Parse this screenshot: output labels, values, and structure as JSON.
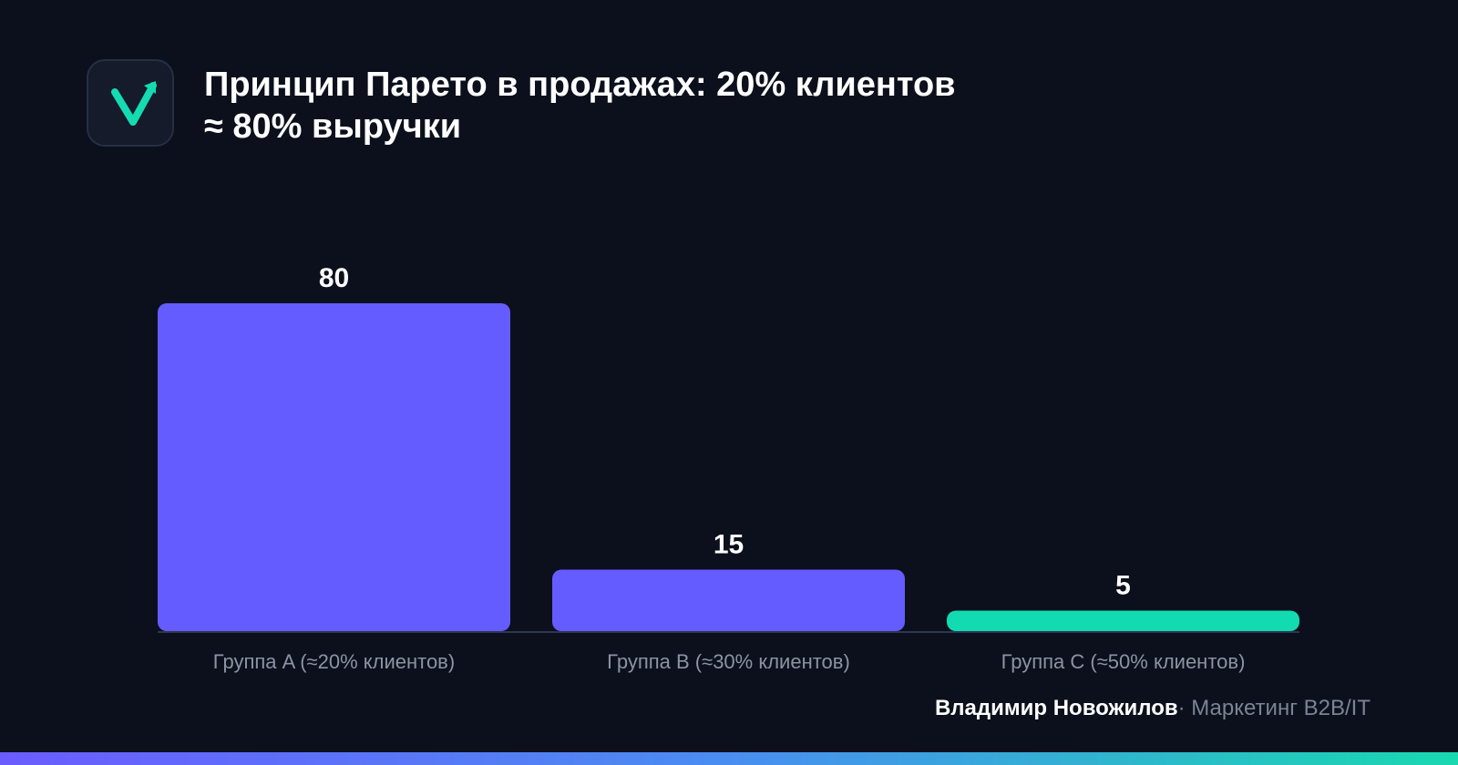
{
  "title_lines": [
    "Принцип Парето в продажах: 20% клиентов",
    "≈ 80% выручки"
  ],
  "logo_icon": "check-arrow-icon",
  "colors": {
    "background": "#0b101c",
    "primary_bar": "#655cff",
    "accent_bar": "#12dbb1",
    "axis_line": "#2e3650",
    "label_text": "#8d93a3",
    "value_text": "#ffffff"
  },
  "chart_data": {
    "type": "bar",
    "categories": [
      "Группа A (≈20% клиентов)",
      "Группа B (≈30% клиентов)",
      "Группа C (≈50% клиентов)"
    ],
    "values": [
      80,
      15,
      5
    ],
    "value_labels": [
      "80",
      "15",
      "5"
    ],
    "bar_colors": [
      "#655cff",
      "#655cff",
      "#12dbb1"
    ],
    "ylim": [
      0,
      80
    ],
    "grid": false,
    "xlabel": "",
    "ylabel": ""
  },
  "footer": {
    "author": "Владимир Новожилов",
    "separator": "· ",
    "role": "Маркетинг B2B/IT"
  }
}
